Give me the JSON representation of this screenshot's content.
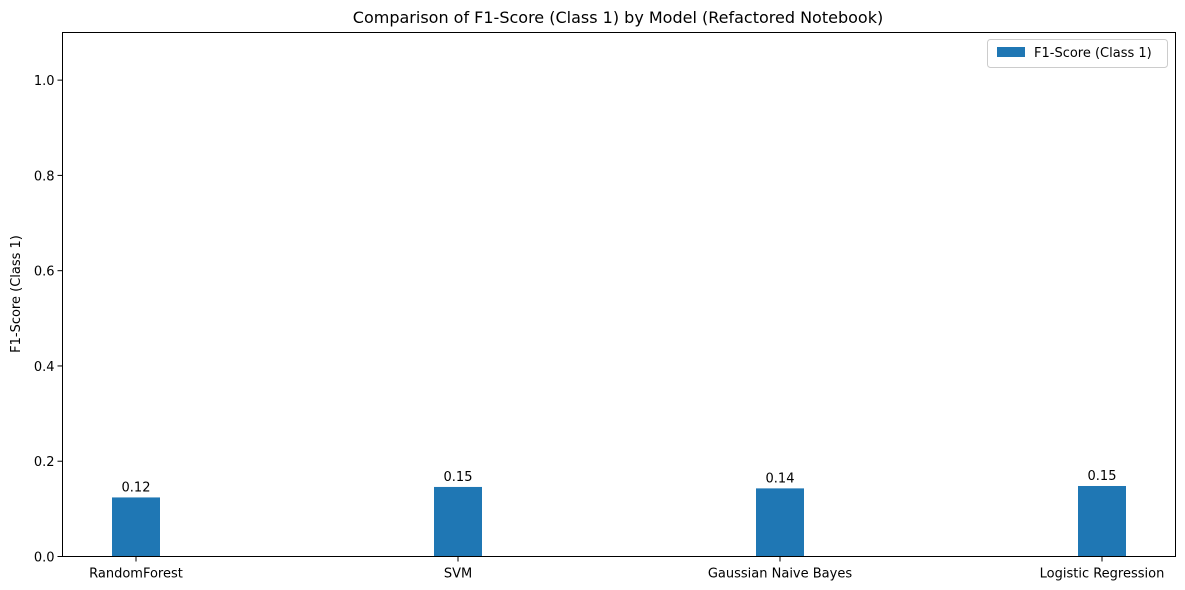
{
  "chart_data": {
    "type": "bar",
    "title": "Comparison of F1-Score (Class 1) by Model (Refactored Notebook)",
    "xlabel": "",
    "ylabel": "F1-Score (Class 1)",
    "categories": [
      "RandomForest",
      "SVM",
      "Gaussian Naive Bayes",
      "Logistic Regression"
    ],
    "series": [
      {
        "name": "F1-Score (Class 1)",
        "values": [
          0.124,
          0.146,
          0.143,
          0.148
        ],
        "labels": [
          "0.12",
          "0.15",
          "0.14",
          "0.15"
        ],
        "color": "#1f77b4"
      }
    ],
    "ylim": [
      0,
      1.1
    ],
    "yticks": [
      "0.0",
      "0.2",
      "0.4",
      "0.6",
      "0.8",
      "1.0"
    ],
    "ytick_values": [
      0,
      0.2,
      0.4,
      0.6,
      0.8,
      1.0
    ],
    "grid": false,
    "legend_position": "top-right"
  }
}
